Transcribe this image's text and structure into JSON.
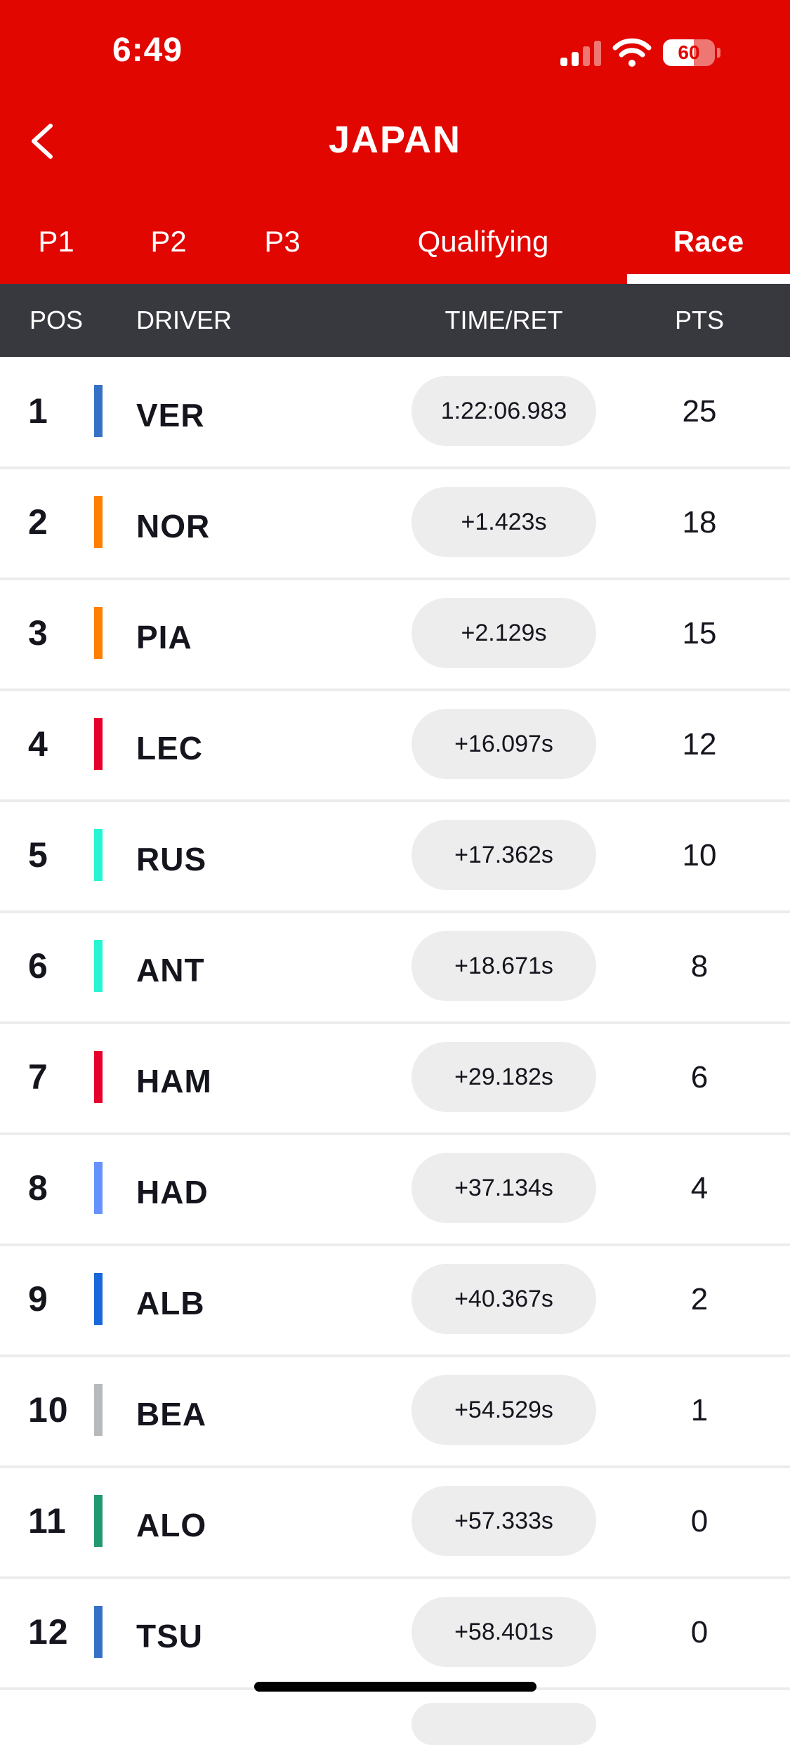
{
  "status_bar": {
    "time": "6:49",
    "battery": "60",
    "battery_level": 0.6
  },
  "header": {
    "title": "JAPAN"
  },
  "tabs": [
    {
      "label": "P1",
      "active": false
    },
    {
      "label": "P2",
      "active": false
    },
    {
      "label": "P3",
      "active": false
    },
    {
      "label": "Qualifying",
      "active": false
    },
    {
      "label": "Race",
      "active": true
    }
  ],
  "columns": {
    "pos": "POS",
    "driver": "DRIVER",
    "time": "TIME/RET",
    "pts": "PTS"
  },
  "colors": {
    "brand_red": "#e10600",
    "column_header_bg": "#38383f",
    "pill_bg": "#ededed"
  },
  "results": [
    {
      "pos": "1",
      "driver": "VER",
      "time": "1:22:06.983",
      "pts": "25",
      "team_color": "#3671c6"
    },
    {
      "pos": "2",
      "driver": "NOR",
      "time": "+1.423s",
      "pts": "18",
      "team_color": "#ff8000"
    },
    {
      "pos": "3",
      "driver": "PIA",
      "time": "+2.129s",
      "pts": "15",
      "team_color": "#ff8000"
    },
    {
      "pos": "4",
      "driver": "LEC",
      "time": "+16.097s",
      "pts": "12",
      "team_color": "#e8002d"
    },
    {
      "pos": "5",
      "driver": "RUS",
      "time": "+17.362s",
      "pts": "10",
      "team_color": "#27f4d2"
    },
    {
      "pos": "6",
      "driver": "ANT",
      "time": "+18.671s",
      "pts": "8",
      "team_color": "#27f4d2"
    },
    {
      "pos": "7",
      "driver": "HAM",
      "time": "+29.182s",
      "pts": "6",
      "team_color": "#e8002d"
    },
    {
      "pos": "8",
      "driver": "HAD",
      "time": "+37.134s",
      "pts": "4",
      "team_color": "#6692ff"
    },
    {
      "pos": "9",
      "driver": "ALB",
      "time": "+40.367s",
      "pts": "2",
      "team_color": "#1868db"
    },
    {
      "pos": "10",
      "driver": "BEA",
      "time": "+54.529s",
      "pts": "1",
      "team_color": "#b6babd"
    },
    {
      "pos": "11",
      "driver": "ALO",
      "time": "+57.333s",
      "pts": "0",
      "team_color": "#229971"
    },
    {
      "pos": "12",
      "driver": "TSU",
      "time": "+58.401s",
      "pts": "0",
      "team_color": "#3671c6"
    }
  ]
}
